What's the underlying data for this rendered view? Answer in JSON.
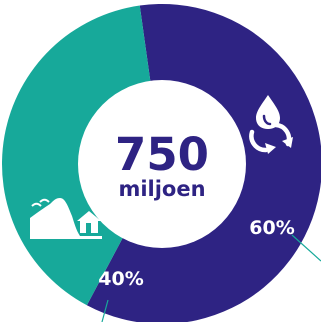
{
  "chart_data": {
    "type": "pie",
    "variant": "donut",
    "center_value": "750",
    "center_unit": "miljoen",
    "slices": [
      {
        "label": "60%",
        "value": 60,
        "color": "#2e2383",
        "icon": "water-recycle-icon"
      },
      {
        "label": "40%",
        "value": 40,
        "color": "#17a99a",
        "icon": "dune-house-icon"
      }
    ],
    "start_angle_deg": 262,
    "legend": "none",
    "center_color": "#ffffff"
  }
}
